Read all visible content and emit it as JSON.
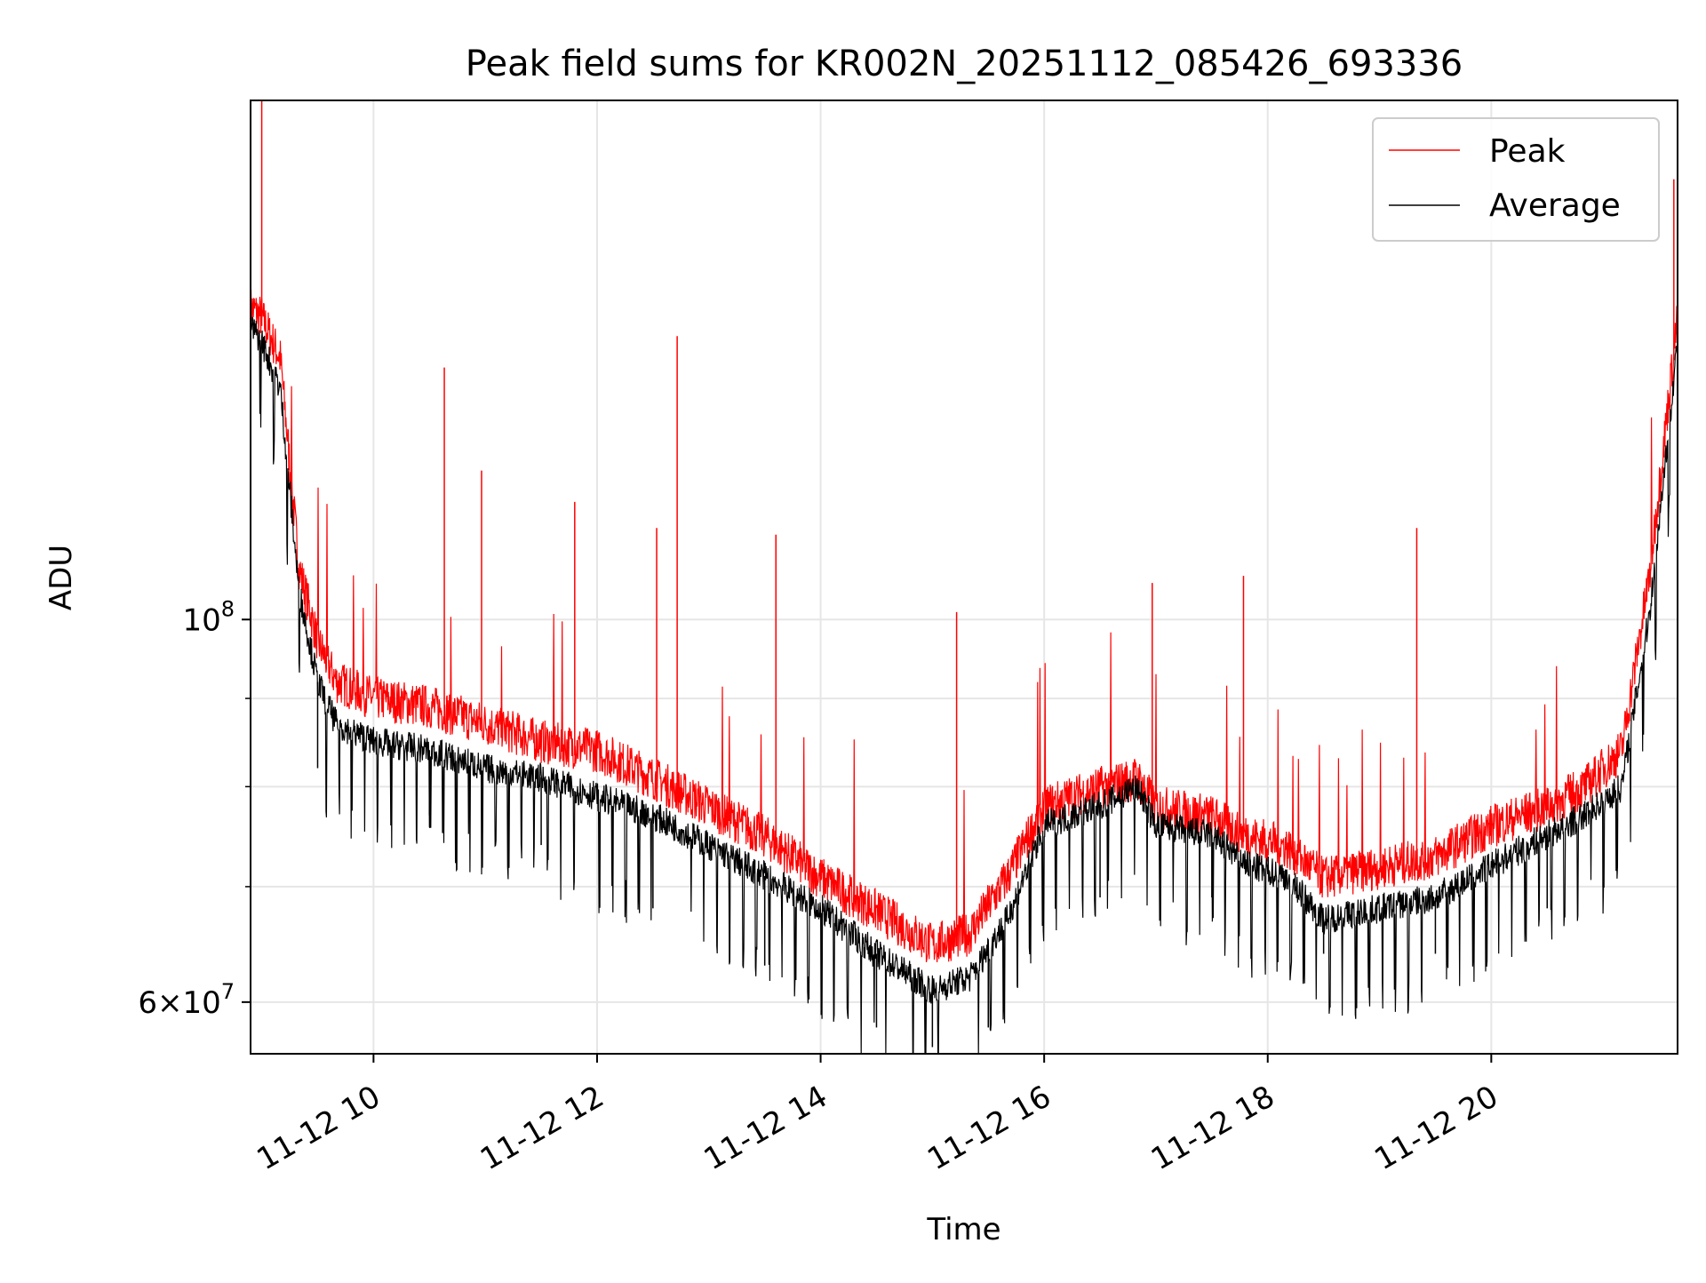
{
  "chart_data": {
    "type": "line",
    "title": "Peak field sums for KR002N_20251112_085426_693336",
    "xlabel": "Time",
    "ylabel": "ADU",
    "x_scale": "time",
    "y_scale": "log",
    "xlim": [
      "2025-11-12 08:54",
      "2025-11-12 21:40"
    ],
    "ylim": [
      56000000,
      200000000
    ],
    "grid": true,
    "legend_position": "top-right",
    "x_ticks": [
      {
        "value": "2025-11-12 10:00",
        "label": "11-12 10"
      },
      {
        "value": "2025-11-12 12:00",
        "label": "11-12 12"
      },
      {
        "value": "2025-11-12 14:00",
        "label": "11-12 14"
      },
      {
        "value": "2025-11-12 16:00",
        "label": "11-12 16"
      },
      {
        "value": "2025-11-12 18:00",
        "label": "11-12 18"
      },
      {
        "value": "2025-11-12 20:00",
        "label": "11-12 20"
      }
    ],
    "y_major_ticks": [
      {
        "value": 60000000,
        "mantissa": "6",
        "exponent": "7"
      },
      {
        "value": 100000000,
        "mantissa": "",
        "exponent": "8"
      }
    ],
    "y_minor_ticks": [
      70000000,
      80000000,
      90000000
    ],
    "series": [
      {
        "name": "Peak",
        "color": "#ff0000",
        "x": [
          "2025-11-12 08:54",
          "2025-11-12 09:00",
          "2025-11-12 09:10",
          "2025-11-12 09:20",
          "2025-11-12 09:30",
          "2025-11-12 09:40",
          "2025-11-12 10:00",
          "2025-11-12 10:30",
          "2025-11-12 11:00",
          "2025-11-12 11:30",
          "2025-11-12 12:00",
          "2025-11-12 12:30",
          "2025-11-12 13:00",
          "2025-11-12 13:30",
          "2025-11-12 14:00",
          "2025-11-12 14:30",
          "2025-11-12 15:00",
          "2025-11-12 15:20",
          "2025-11-12 15:40",
          "2025-11-12 16:00",
          "2025-11-12 16:30",
          "2025-11-12 16:50",
          "2025-11-12 17:00",
          "2025-11-12 17:30",
          "2025-11-12 17:50",
          "2025-11-12 18:10",
          "2025-11-12 18:30",
          "2025-11-12 19:00",
          "2025-11-12 19:30",
          "2025-11-12 20:00",
          "2025-11-12 20:30",
          "2025-11-12 20:50",
          "2025-11-12 21:10",
          "2025-11-12 21:25",
          "2025-11-12 21:40"
        ],
        "values": [
          150000000,
          148000000,
          140000000,
          106000000,
          96000000,
          91000000,
          89000000,
          88000000,
          86000000,
          84000000,
          83000000,
          80000000,
          77000000,
          74000000,
          70000000,
          67000000,
          64000000,
          65000000,
          70000000,
          77000000,
          79000000,
          80000000,
          77000000,
          76000000,
          74000000,
          73000000,
          70000000,
          71000000,
          72000000,
          75000000,
          77000000,
          79000000,
          83000000,
          105000000,
          148000000
        ],
        "spikes": [
          {
            "x": "2025-11-12 09:00",
            "value": 200000000
          },
          {
            "x": "2025-11-12 10:38",
            "value": 140000000
          },
          {
            "x": "2025-11-12 10:58",
            "value": 122000000
          },
          {
            "x": "2025-11-12 11:48",
            "value": 117000000
          },
          {
            "x": "2025-11-12 12:32",
            "value": 113000000
          },
          {
            "x": "2025-11-12 12:43",
            "value": 146000000
          },
          {
            "x": "2025-11-12 13:36",
            "value": 112000000
          },
          {
            "x": "2025-11-12 15:13",
            "value": 101000000
          },
          {
            "x": "2025-11-12 16:58",
            "value": 105000000
          },
          {
            "x": "2025-11-12 17:47",
            "value": 106000000
          },
          {
            "x": "2025-11-12 19:20",
            "value": 113000000
          },
          {
            "x": "2025-11-12 21:38",
            "value": 180000000
          }
        ]
      },
      {
        "name": "Average",
        "color": "#000000",
        "x": [
          "2025-11-12 08:54",
          "2025-11-12 09:00",
          "2025-11-12 09:10",
          "2025-11-12 09:20",
          "2025-11-12 09:30",
          "2025-11-12 09:40",
          "2025-11-12 10:00",
          "2025-11-12 10:30",
          "2025-11-12 11:00",
          "2025-11-12 11:30",
          "2025-11-12 12:00",
          "2025-11-12 12:30",
          "2025-11-12 13:00",
          "2025-11-12 13:30",
          "2025-11-12 14:00",
          "2025-11-12 14:30",
          "2025-11-12 15:00",
          "2025-11-12 15:20",
          "2025-11-12 15:40",
          "2025-11-12 16:00",
          "2025-11-12 16:30",
          "2025-11-12 16:50",
          "2025-11-12 17:00",
          "2025-11-12 17:30",
          "2025-11-12 17:50",
          "2025-11-12 18:10",
          "2025-11-12 18:30",
          "2025-11-12 19:00",
          "2025-11-12 19:30",
          "2025-11-12 20:00",
          "2025-11-12 20:30",
          "2025-11-12 20:50",
          "2025-11-12 21:10",
          "2025-11-12 21:25",
          "2025-11-12 21:40"
        ],
        "values": [
          148000000,
          145000000,
          136000000,
          104000000,
          92000000,
          87000000,
          85000000,
          84000000,
          82000000,
          81000000,
          79000000,
          77000000,
          74000000,
          71000000,
          68000000,
          64000000,
          61000000,
          62000000,
          67000000,
          76000000,
          78000000,
          80000000,
          76000000,
          75000000,
          72000000,
          71000000,
          67000000,
          68000000,
          69000000,
          72000000,
          75000000,
          77000000,
          80000000,
          101000000,
          145000000
        ],
        "dips": [
          {
            "x": "2025-11-12 09:30",
            "value": 82000000
          },
          {
            "x": "2025-11-12 10:30",
            "value": 77000000
          },
          {
            "x": "2025-11-12 11:30",
            "value": 74000000
          },
          {
            "x": "2025-11-12 12:30",
            "value": 68000000
          },
          {
            "x": "2025-11-12 13:30",
            "value": 63000000
          },
          {
            "x": "2025-11-12 14:30",
            "value": 58000000
          },
          {
            "x": "2025-11-12 15:00",
            "value": 56500000
          },
          {
            "x": "2025-11-12 15:30",
            "value": 58000000
          },
          {
            "x": "2025-11-12 16:30",
            "value": 69000000
          },
          {
            "x": "2025-11-12 17:30",
            "value": 69000000
          },
          {
            "x": "2025-11-12 18:30",
            "value": 64000000
          },
          {
            "x": "2025-11-12 19:30",
            "value": 64000000
          },
          {
            "x": "2025-11-12 20:30",
            "value": 68000000
          },
          {
            "x": "2025-11-12 21:00",
            "value": 70000000
          }
        ]
      }
    ]
  }
}
